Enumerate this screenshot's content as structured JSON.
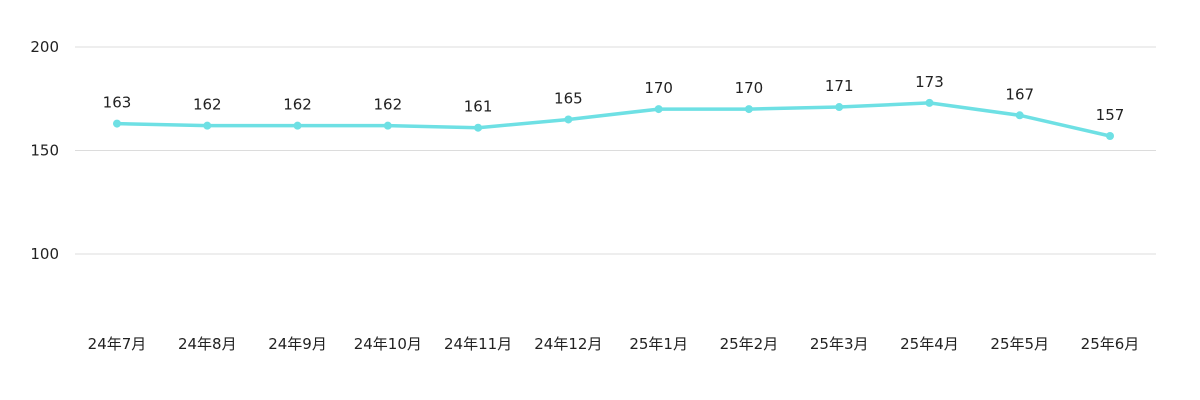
{
  "chart_data": {
    "type": "line",
    "categories": [
      "24年7月",
      "24年8月",
      "24年9月",
      "24年10月",
      "24年11月",
      "24年12月",
      "25年1月",
      "25年2月",
      "25年3月",
      "25年4月",
      "25年5月",
      "25年6月"
    ],
    "series": [
      {
        "values": [
          163,
          162,
          162,
          162,
          161,
          165,
          170,
          170,
          171,
          173,
          167,
          157
        ]
      }
    ],
    "title": "",
    "xlabel": "",
    "ylabel": "",
    "ylim": [
      70,
      200
    ],
    "yticks": [
      100,
      150,
      200
    ],
    "grid": true,
    "colors": {
      "line": "#6ee0e4",
      "marker": "#6ee0e4"
    }
  }
}
